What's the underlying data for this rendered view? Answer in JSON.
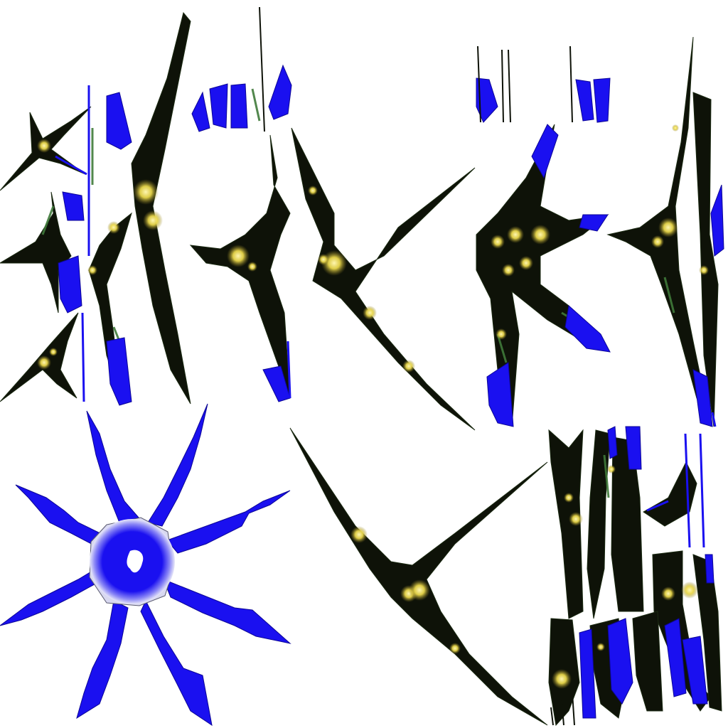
{
  "atlas": {
    "background": "#ffffff",
    "colors": {
      "blue": "#1a10f0",
      "blue_edge": "#0c0696",
      "dark": "#0e1208",
      "green": "#3f7a3a",
      "gold": "#e8d64a",
      "gold_core": "#fff6b0",
      "white_hole": "#ffffff"
    },
    "islands": [
      {
        "name": "blue-star-island",
        "kind": "radial-star",
        "fill": "blue"
      },
      {
        "name": "dark-limb-island",
        "kind": "dark-branch",
        "fill": "dark"
      },
      {
        "name": "texture-strip-island",
        "kind": "strip",
        "fill": "dark"
      }
    ]
  }
}
